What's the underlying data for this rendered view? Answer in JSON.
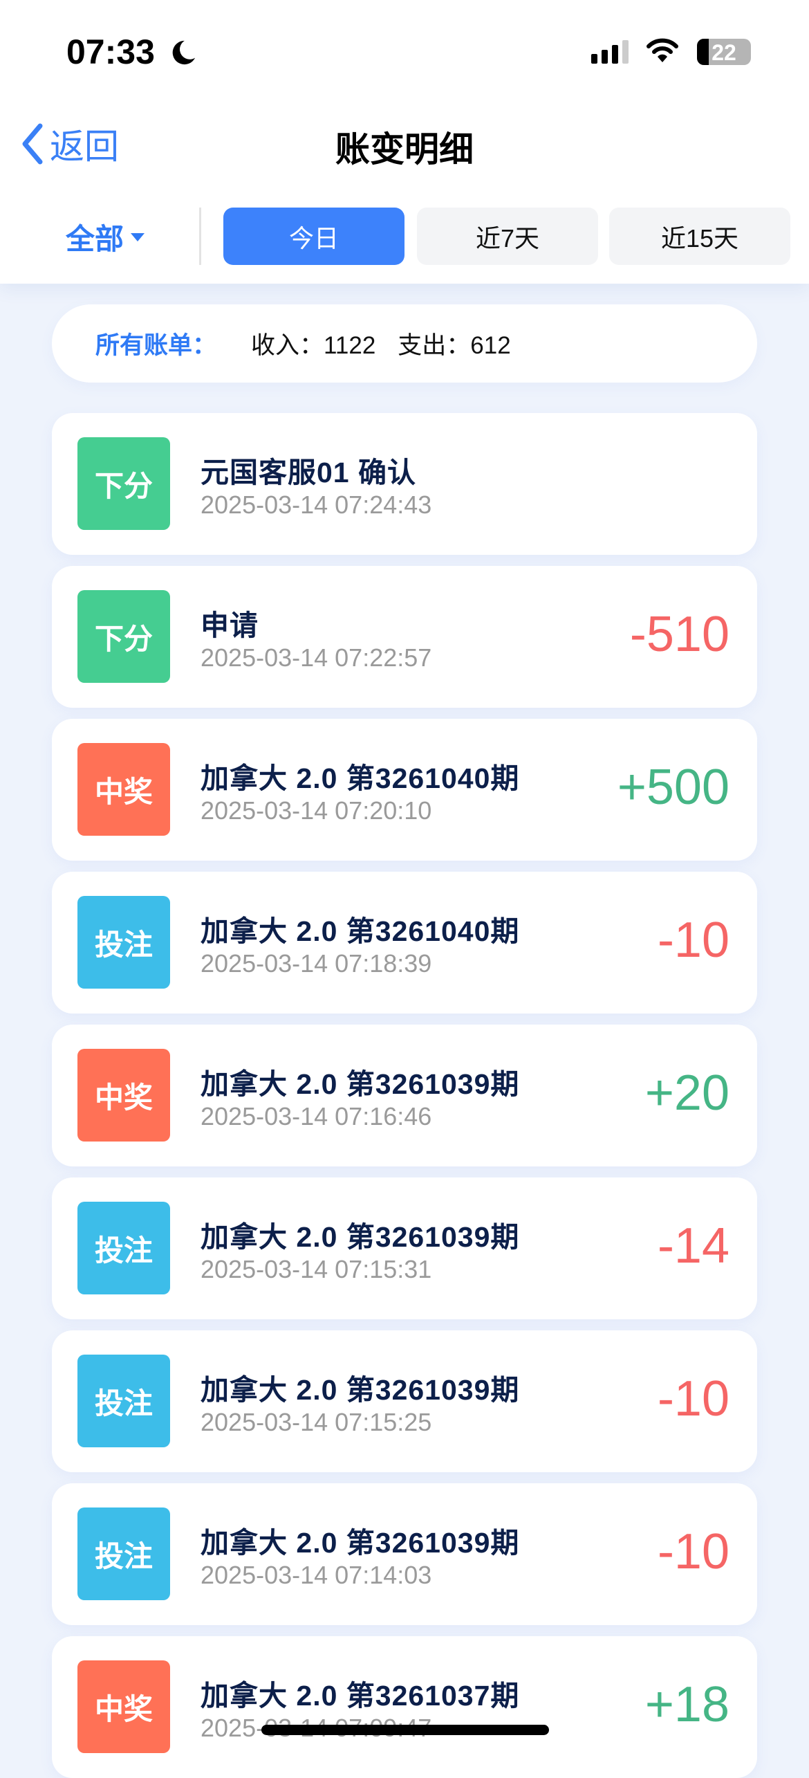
{
  "status": {
    "time": "07:33",
    "battery": "22"
  },
  "nav": {
    "back_label": "返回",
    "title": "账变明细"
  },
  "filter": {
    "type_label": "全部",
    "ranges": [
      "今日",
      "近7天",
      "近15天"
    ],
    "active": 0
  },
  "summary": {
    "label": "所有账单：",
    "income": "收入：1122",
    "expense": "支出：612"
  },
  "colors": {
    "down": "#45cd91",
    "win": "#ff7156",
    "bet": "#3dbde9",
    "neg": "#f56565",
    "pos": "#45b585"
  },
  "records": [
    {
      "type": "下分",
      "kind": "down",
      "title": "元国客服01 确认",
      "date": "2025-03-14 07:24:43",
      "amount": ""
    },
    {
      "type": "下分",
      "kind": "down",
      "title": "申请",
      "date": "2025-03-14 07:22:57",
      "amount": "-510"
    },
    {
      "type": "中奖",
      "kind": "win",
      "title": "加拿大 2.0 第3261040期",
      "date": "2025-03-14 07:20:10",
      "amount": "+500"
    },
    {
      "type": "投注",
      "kind": "bet",
      "title": "加拿大 2.0 第3261040期",
      "date": "2025-03-14 07:18:39",
      "amount": "-10"
    },
    {
      "type": "中奖",
      "kind": "win",
      "title": "加拿大 2.0 第3261039期",
      "date": "2025-03-14 07:16:46",
      "amount": "+20"
    },
    {
      "type": "投注",
      "kind": "bet",
      "title": "加拿大 2.0 第3261039期",
      "date": "2025-03-14 07:15:31",
      "amount": "-14"
    },
    {
      "type": "投注",
      "kind": "bet",
      "title": "加拿大 2.0 第3261039期",
      "date": "2025-03-14 07:15:25",
      "amount": "-10"
    },
    {
      "type": "投注",
      "kind": "bet",
      "title": "加拿大 2.0 第3261039期",
      "date": "2025-03-14 07:14:03",
      "amount": "-10"
    },
    {
      "type": "中奖",
      "kind": "win",
      "title": "加拿大 2.0 第3261037期",
      "date": "2025-03-14 07:09:47",
      "amount": "+18"
    }
  ]
}
